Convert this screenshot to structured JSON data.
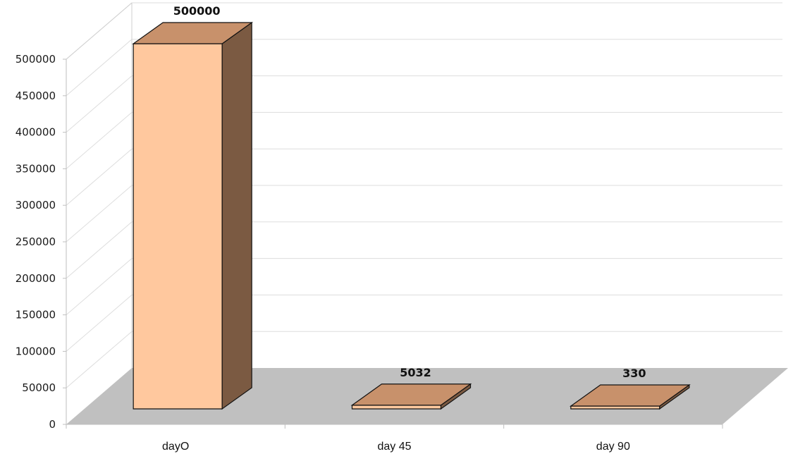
{
  "chart_data": {
    "type": "bar",
    "categories": [
      "dayO",
      "day 45",
      "day 90"
    ],
    "values": [
      500000,
      5032,
      330
    ],
    "data_labels": [
      "500000",
      "5032",
      "330"
    ],
    "title": "",
    "xlabel": "",
    "ylabel": "",
    "ylim": [
      0,
      500000
    ],
    "yticks": [
      0,
      50000,
      100000,
      150000,
      200000,
      250000,
      300000,
      350000,
      400000,
      450000,
      500000
    ],
    "ytick_labels": [
      "0",
      "50000",
      "100000",
      "150000",
      "200000",
      "250000",
      "300000",
      "350000",
      "400000",
      "450000",
      "500000"
    ],
    "grid": true,
    "legend": false,
    "style": "3d",
    "colors": {
      "bar_front": "#ffc89e",
      "bar_top": "#c8916b",
      "bar_side": "#7b5a42",
      "floor": "#c0c0c0",
      "gridline": "#dddddd",
      "edge": "#111111"
    }
  }
}
